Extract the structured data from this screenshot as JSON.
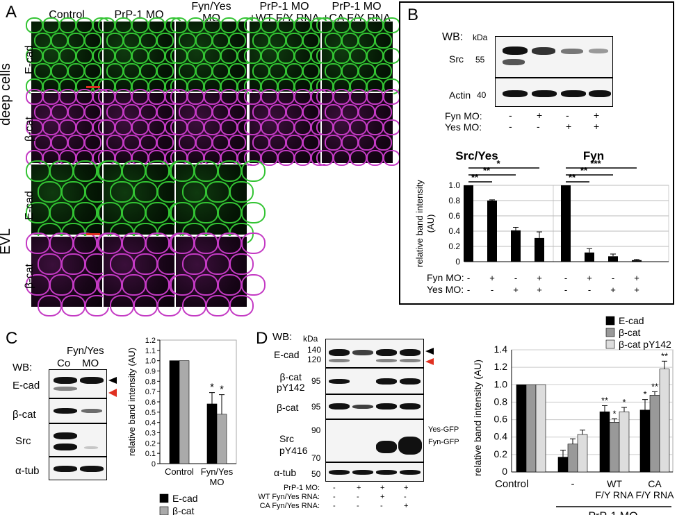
{
  "panelA": {
    "label": "A",
    "headers": [
      "Control",
      "PrP-1 MO",
      "Fyn/Yes\nMO"
    ],
    "headers_rescue": [
      "PrP-1 MO\n+WT F/Y RNA",
      "PrP-1 MO\n+CA F/Y RNA"
    ],
    "row_ecad": "E-cad",
    "row_bcat": "β-cat",
    "group_deep": "deep cells",
    "group_evl": "EVL",
    "colors": {
      "ecad": "#33c433",
      "bcat": "#c43ac4",
      "scalebar": "#e03020"
    }
  },
  "panelB": {
    "label": "B",
    "wb": "WB:",
    "kda": "kDa",
    "rows": [
      {
        "name": "Src",
        "kda": "55"
      },
      {
        "name": "Actin",
        "kda": "40"
      }
    ],
    "fyn_mo_label": "Fyn MO:",
    "yes_mo_label": "Yes MO:",
    "fyn_mo": [
      "-",
      "+",
      "-",
      "+"
    ],
    "yes_mo": [
      "-",
      "-",
      "+",
      "+"
    ],
    "ylabel": "relative band intensity\n(AU)",
    "yticks": [
      "0",
      "0.2",
      "0.4",
      "0.6",
      "0.8",
      "1.0"
    ],
    "sig_srcyes": [
      "**",
      "**",
      "*"
    ],
    "sig_fyn": [
      "**",
      "**",
      "***"
    ]
  },
  "panelC": {
    "label": "C",
    "wb": "WB:",
    "col_co": "Co",
    "col_mo": "MO",
    "treatment": "Fyn/Yes",
    "rows": [
      "E-cad",
      "β-cat",
      "Src",
      "α-tub"
    ],
    "ylabel": "relative band intensity (AU)",
    "yticks": [
      "0",
      "0.1",
      "0.2",
      "0.3",
      "0.4",
      "0.5",
      "0.6",
      "0.7",
      "0.8",
      "0.9",
      "1.0",
      "1.1",
      "1.2"
    ],
    "xticks": [
      "Control",
      "Fyn/Yes\nMO"
    ],
    "legend": [
      "E-cad",
      "β-cat"
    ],
    "sig": [
      "*",
      "*"
    ]
  },
  "panelD": {
    "label": "D",
    "wb": "WB:",
    "kda": "kDa",
    "blot_rows": [
      "E-cad",
      "β-cat\npY142",
      "β-cat",
      "Src\npY416",
      "α-tub"
    ],
    "mw": [
      "140",
      "120",
      "95",
      "95",
      "90",
      "70",
      "50"
    ],
    "gfp_labels": [
      "Yes-GFP",
      "Fyn-GFP"
    ],
    "cond_labels": [
      "PrP-1 MO:",
      "WT Fyn/Yes RNA:",
      "CA Fyn/Yes RNA:"
    ],
    "conds": [
      [
        "-",
        "+",
        "+",
        "+"
      ],
      [
        "-",
        "-",
        "+",
        "-"
      ],
      [
        "-",
        "-",
        "-",
        "+"
      ]
    ],
    "ylabel": "relative band intensity (AU)",
    "yticks": [
      "0",
      "0.2",
      "0.4",
      "0.6",
      "0.8",
      "1.0",
      "1.2",
      "1.4"
    ],
    "xticks": [
      "Control",
      "-",
      "WT\nF/Y RNA",
      "CA\nF/Y RNA"
    ],
    "group_label": "PrP-1 MO",
    "legend": [
      "E-cad",
      "β-cat",
      "β-cat pY142"
    ],
    "sig_wt": [
      "**",
      "*",
      "*"
    ],
    "sig_ca": [
      "*",
      "**",
      "**"
    ]
  },
  "chart_data": [
    {
      "type": "bar",
      "id": "B-SrcYes",
      "title": "Src/Yes",
      "ylabel": "relative band intensity\n(AU)",
      "ylim": [
        0,
        1.0
      ],
      "categories": [
        "-/-",
        "+/-",
        "-/+",
        "+/+"
      ],
      "series": [
        {
          "values": [
            1.0,
            0.8,
            0.41,
            0.31
          ],
          "errors": [
            0,
            0.01,
            0.04,
            0.08
          ]
        }
      ]
    },
    {
      "type": "bar",
      "id": "B-Fyn",
      "title": "Fyn",
      "ylim": [
        0,
        1.0
      ],
      "categories": [
        "-/-",
        "+/-",
        "-/+",
        "+/+"
      ],
      "series": [
        {
          "values": [
            1.0,
            0.12,
            0.07,
            0.02
          ],
          "errors": [
            0,
            0.05,
            0.03,
            0.01
          ]
        }
      ]
    },
    {
      "type": "bar",
      "id": "C",
      "ylabel": "relative band intensity (AU)",
      "ylim": [
        0,
        1.2
      ],
      "categories": [
        "Control",
        "Fyn/Yes MO"
      ],
      "series": [
        {
          "name": "E-cad",
          "color": "#000000",
          "values": [
            1.0,
            0.58
          ],
          "errors": [
            0,
            0.11
          ]
        },
        {
          "name": "β-cat",
          "color": "#aaaaaa",
          "values": [
            1.0,
            0.48
          ],
          "errors": [
            0,
            0.19
          ]
        }
      ]
    },
    {
      "type": "bar",
      "id": "D",
      "ylabel": "relative band intensity (AU)",
      "ylim": [
        0,
        1.4
      ],
      "categories": [
        "Control",
        "PrP-1 MO -",
        "PrP-1 MO + WT F/Y RNA",
        "PrP-1 MO + CA F/Y RNA"
      ],
      "series": [
        {
          "name": "E-cad",
          "color": "#000000",
          "values": [
            1.0,
            0.17,
            0.69,
            0.71
          ],
          "errors": [
            0,
            0.08,
            0.07,
            0.12
          ]
        },
        {
          "name": "β-cat",
          "color": "#999999",
          "values": [
            1.0,
            0.32,
            0.57,
            0.88
          ],
          "errors": [
            0,
            0.06,
            0.04,
            0.04
          ]
        },
        {
          "name": "β-cat pY142",
          "color": "#dddddd",
          "values": [
            1.0,
            0.43,
            0.69,
            1.18
          ],
          "errors": [
            0,
            0.05,
            0.05,
            0.09
          ]
        }
      ]
    }
  ]
}
